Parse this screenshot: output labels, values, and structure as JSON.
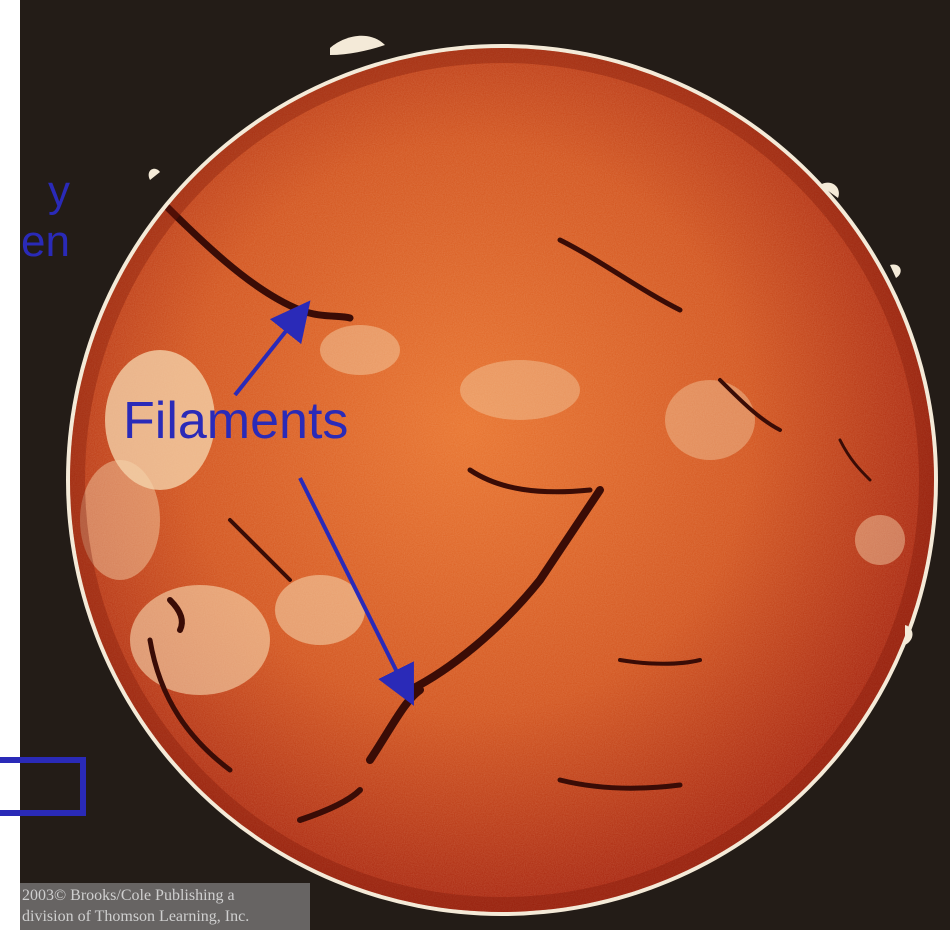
{
  "image": {
    "subject": "sun-h-alpha-disk",
    "colors": {
      "sky": "#231c17",
      "sun_center": "#e8712c",
      "sun_mid": "#d2521d",
      "sun_edge": "#a8230d",
      "limb": "#f4ead8",
      "filament": "#3a0c06",
      "plage": "#f6d8b0",
      "annotation": "#2a2ab8"
    }
  },
  "labels": {
    "left_line_1": "y",
    "left_line_2": "en",
    "filaments": "Filaments"
  },
  "copyright": {
    "line_1": "2003© Brooks/Cole Publishing a",
    "line_2": "division of Thomson Learning, Inc."
  }
}
